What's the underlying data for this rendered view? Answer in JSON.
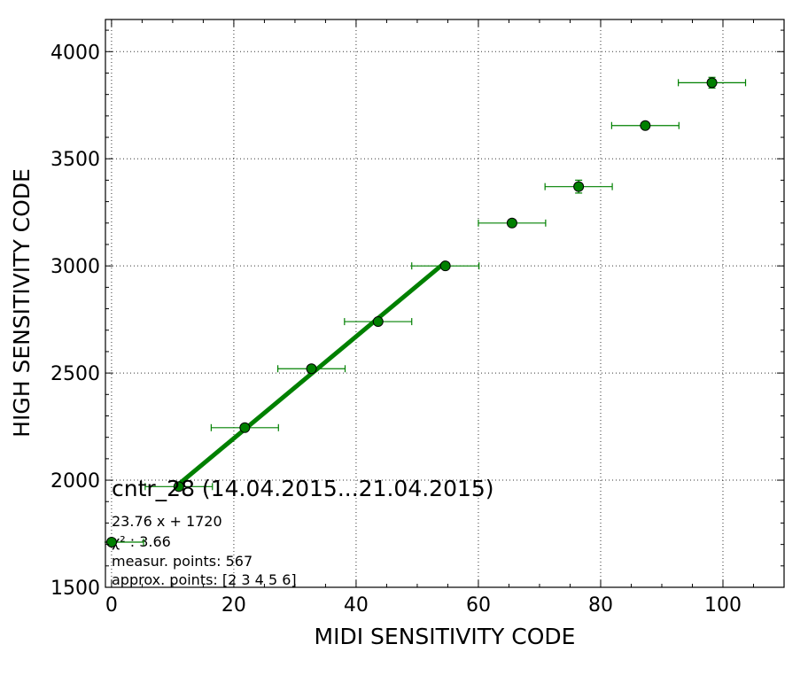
{
  "chart_data": {
    "type": "scatter",
    "xlabel": "MIDI SENSITIVITY CODE",
    "ylabel": "HIGH SENSITIVITY CODE",
    "xlim": [
      -1,
      110
    ],
    "ylim": [
      1500,
      4150
    ],
    "xticks": [
      0,
      20,
      40,
      60,
      80,
      100
    ],
    "yticks": [
      1500,
      2000,
      2500,
      3000,
      3500,
      4000
    ],
    "grid": true,
    "colors": {
      "series": "#008000",
      "marker": "#008000",
      "fit": "#008000"
    },
    "series": [
      {
        "points": [
          {
            "x": 11.0,
            "y": 1970,
            "xerr": 5.5,
            "yerr": 10
          },
          {
            "x": 21.8,
            "y": 2245,
            "xerr": 5.5,
            "yerr": 12
          },
          {
            "x": 32.7,
            "y": 2520,
            "xerr": 5.5,
            "yerr": 12
          },
          {
            "x": 43.6,
            "y": 2740,
            "xerr": 5.5,
            "yerr": 12
          },
          {
            "x": 54.6,
            "y": 3000,
            "xerr": 5.5,
            "yerr": 15
          },
          {
            "x": 65.5,
            "y": 3200,
            "xerr": 5.5,
            "yerr": 15
          },
          {
            "x": 76.4,
            "y": 3370,
            "xerr": 5.5,
            "yerr": 30
          },
          {
            "x": 87.3,
            "y": 3655,
            "xerr": 5.5,
            "yerr": 15
          },
          {
            "x": 98.2,
            "y": 3855,
            "xerr": 5.5,
            "yerr": 25
          }
        ]
      }
    ],
    "fit": {
      "x_start": 11.0,
      "x_end": 54.6,
      "slope": 23.76,
      "intercept": 1720
    },
    "annotations": {
      "title": "cntr_28 (14.04.2015...21.04.2015)",
      "equation": "23.76 x + 1720",
      "chi2": "χ² : 3.66",
      "measur": "measur. points: 567",
      "approx": "approx. points: [2 3 4 5 6]"
    },
    "legend": {
      "placement": "lower-left"
    }
  }
}
